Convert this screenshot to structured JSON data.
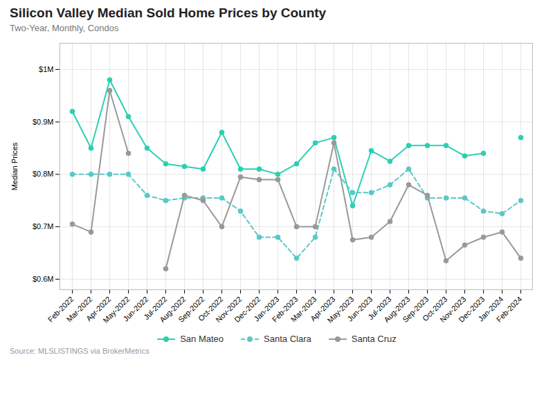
{
  "chart_data": {
    "type": "line",
    "title": "Silicon Valley Median Sold Home Prices by County",
    "subtitle": "Two-Year, Monthly, Condos",
    "source": "Source:  MLSLISTINGS via BrokerMetrics",
    "ylabel": "Median Prices",
    "categories": [
      "Feb-2022",
      "Mar-2022",
      "Apr-2022",
      "May-2022",
      "Jun-2022",
      "Jul-2022",
      "Aug-2022",
      "Sep-2022",
      "Oct-2022",
      "Nov-2022",
      "Dec-2022",
      "Jan-2023",
      "Feb-2023",
      "Mar-2023",
      "Apr-2023",
      "May-2023",
      "Jun-2023",
      "Jul-2023",
      "Aug-2023",
      "Sep-2023",
      "Oct-2023",
      "Nov-2023",
      "Dec-2023",
      "Jan-2024",
      "Feb-2024"
    ],
    "series": [
      {
        "name": "San Mateo",
        "color": "#2dcfb3",
        "line_style": "solid",
        "marker": "circle",
        "values": [
          920000,
          850000,
          980000,
          910000,
          850000,
          820000,
          815000,
          810000,
          880000,
          810000,
          810000,
          800000,
          820000,
          860000,
          870000,
          740000,
          845000,
          825000,
          855000,
          855000,
          855000,
          835000,
          840000,
          null,
          870000
        ]
      },
      {
        "name": "Santa Clara",
        "color": "#5bc8c8",
        "line_style": "dashed",
        "marker": "circle",
        "values": [
          800000,
          800000,
          800000,
          800000,
          760000,
          750000,
          755000,
          755000,
          755000,
          730000,
          680000,
          680000,
          640000,
          680000,
          810000,
          765000,
          765000,
          780000,
          810000,
          755000,
          755000,
          755000,
          730000,
          725000,
          750000
        ]
      },
      {
        "name": "Santa Cruz",
        "color": "#999999",
        "line_style": "solid",
        "marker": "circle",
        "values": [
          705000,
          690000,
          960000,
          840000,
          null,
          620000,
          760000,
          750000,
          700000,
          795000,
          790000,
          790000,
          700000,
          700000,
          860000,
          675000,
          680000,
          710000,
          780000,
          760000,
          635000,
          665000,
          680000,
          690000,
          640000
        ]
      }
    ],
    "ylim": [
      580000,
      1050000
    ],
    "yticks": [
      {
        "value": 600000,
        "label": "$0.6M"
      },
      {
        "value": 700000,
        "label": "$0.7M"
      },
      {
        "value": 800000,
        "label": "$0.8M"
      },
      {
        "value": 900000,
        "label": "$0.9M"
      },
      {
        "value": 1000000,
        "label": "$1M"
      }
    ],
    "grid": true,
    "legend": "bottom"
  }
}
